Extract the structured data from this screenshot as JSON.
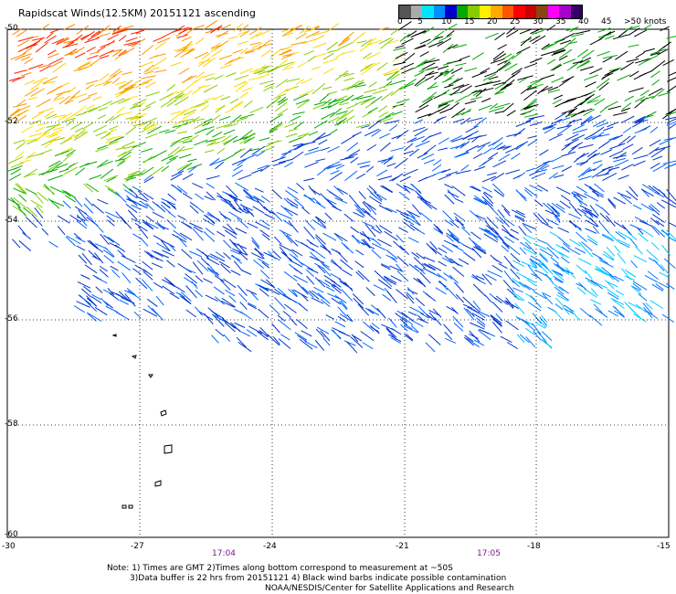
{
  "title": "Rapidscat Winds(12.5KM) 20151121 ascending",
  "scale": {
    "colors": [
      "#555555",
      "#aaaaaa",
      "#00e5ff",
      "#0090ff",
      "#0000cc",
      "#00aa00",
      "#88cc00",
      "#ffee00",
      "#ffaa00",
      "#ff5500",
      "#ff0000",
      "#cc0000",
      "#884411",
      "#ff00ff",
      "#aa00cc",
      "#330066"
    ],
    "labels": [
      "0",
      "5",
      "10",
      "15",
      "20",
      "25",
      "30",
      "35",
      "40",
      "45",
      ">50 knots"
    ]
  },
  "axes": {
    "lon_labels": [
      "-30",
      "-27",
      "-24",
      "-21",
      "-18",
      "-15"
    ],
    "lat_labels": [
      "-50",
      "-52",
      "-54",
      "-56",
      "-58",
      "-60"
    ]
  },
  "times": [
    "17:04",
    "17:05"
  ],
  "notes": {
    "line1": "Note: 1) Times are GMT 2)Times along bottom correspond to measurement at ~50S",
    "line2": "3)Data buffer is 22 hrs from 20151121 4) Black wind barbs indicate possible contamination",
    "line3": "NOAA/NESDIS/Center for Satellite Applications and Research"
  },
  "zones": [
    {
      "color": "#ff2200",
      "fraction": 0.25
    },
    {
      "color": "#ff9900",
      "fraction": 0.2
    },
    {
      "color": "#ffdd00",
      "fraction": 0.15
    },
    {
      "color": "#00aa00",
      "fraction": 0.15
    },
    {
      "color": "#0033cc",
      "fraction": 0.15
    },
    {
      "color": "#00ccff",
      "fraction": 0.1
    }
  ]
}
